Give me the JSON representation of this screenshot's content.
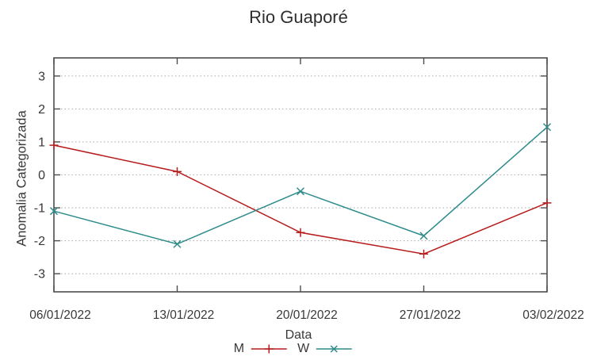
{
  "title": "Rio Guaporé",
  "chart_data": {
    "type": "line",
    "title": "Rio Guaporé",
    "xlabel": "Data",
    "ylabel": "Anomalia Categorizada",
    "categories": [
      "06/01/2022",
      "13/01/2022",
      "20/01/2022",
      "27/01/2022",
      "03/02/2022"
    ],
    "series": [
      {
        "name": "M",
        "color": "#b71c1c",
        "marker": "plus",
        "values": [
          0.9,
          0.1,
          -1.75,
          -2.4,
          -0.85
        ]
      },
      {
        "name": "W",
        "color": "#2e8b8b",
        "marker": "cross",
        "values": [
          -1.1,
          -2.1,
          -0.5,
          -1.85,
          1.45
        ]
      }
    ],
    "yticks": [
      3,
      2,
      1,
      0,
      -1,
      -2,
      -3
    ],
    "ylim": [
      -3.55,
      3.55
    ],
    "grid": "horizontal-dotted",
    "legend_position": "bottom-center"
  },
  "colors": {
    "axis": "#4d4d4d",
    "grid": "#b0b0b0",
    "text": "#383838",
    "background": "#ffffff"
  }
}
